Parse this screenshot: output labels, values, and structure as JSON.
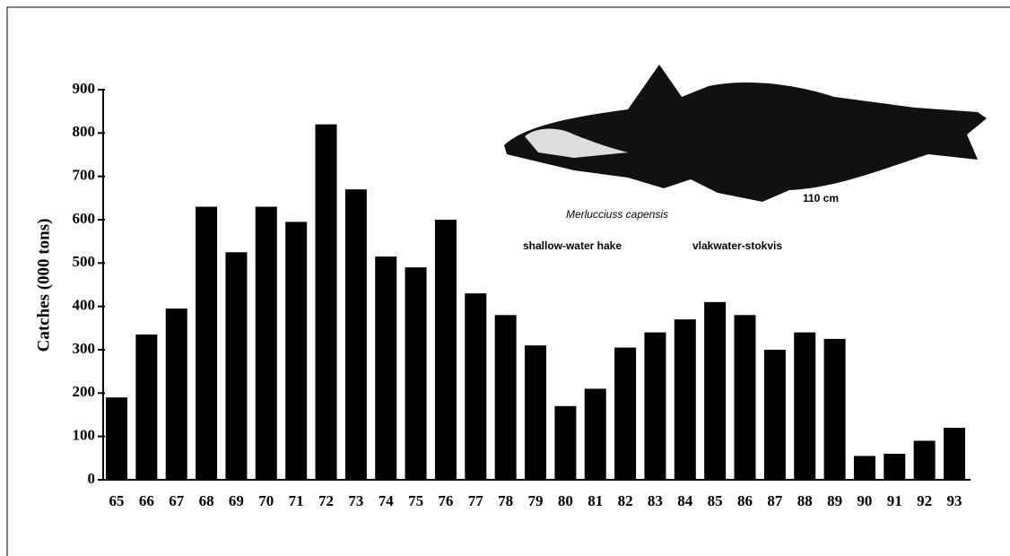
{
  "chart_data": {
    "type": "bar",
    "y_label": "Catches (000 tons)",
    "species": "Merlucciuss capensis",
    "common_name": "shallow-water hake",
    "local_name": "vlakwater-stokvis",
    "size_note": "110 cm",
    "categories": [
      "65",
      "66",
      "67",
      "68",
      "69",
      "70",
      "71",
      "72",
      "73",
      "74",
      "75",
      "76",
      "77",
      "78",
      "79",
      "80",
      "81",
      "82",
      "83",
      "84",
      "85",
      "86",
      "87",
      "88",
      "89",
      "90",
      "91",
      "92",
      "93"
    ],
    "values": [
      190,
      335,
      395,
      630,
      525,
      630,
      595,
      820,
      670,
      515,
      490,
      600,
      430,
      380,
      310,
      170,
      210,
      305,
      340,
      370,
      410,
      380,
      300,
      340,
      325,
      55,
      60,
      90,
      120
    ],
    "color": "#000000",
    "ylim": [
      0,
      900
    ],
    "yticks": [
      0,
      100,
      200,
      300,
      400,
      500,
      600,
      700,
      800,
      900
    ]
  }
}
